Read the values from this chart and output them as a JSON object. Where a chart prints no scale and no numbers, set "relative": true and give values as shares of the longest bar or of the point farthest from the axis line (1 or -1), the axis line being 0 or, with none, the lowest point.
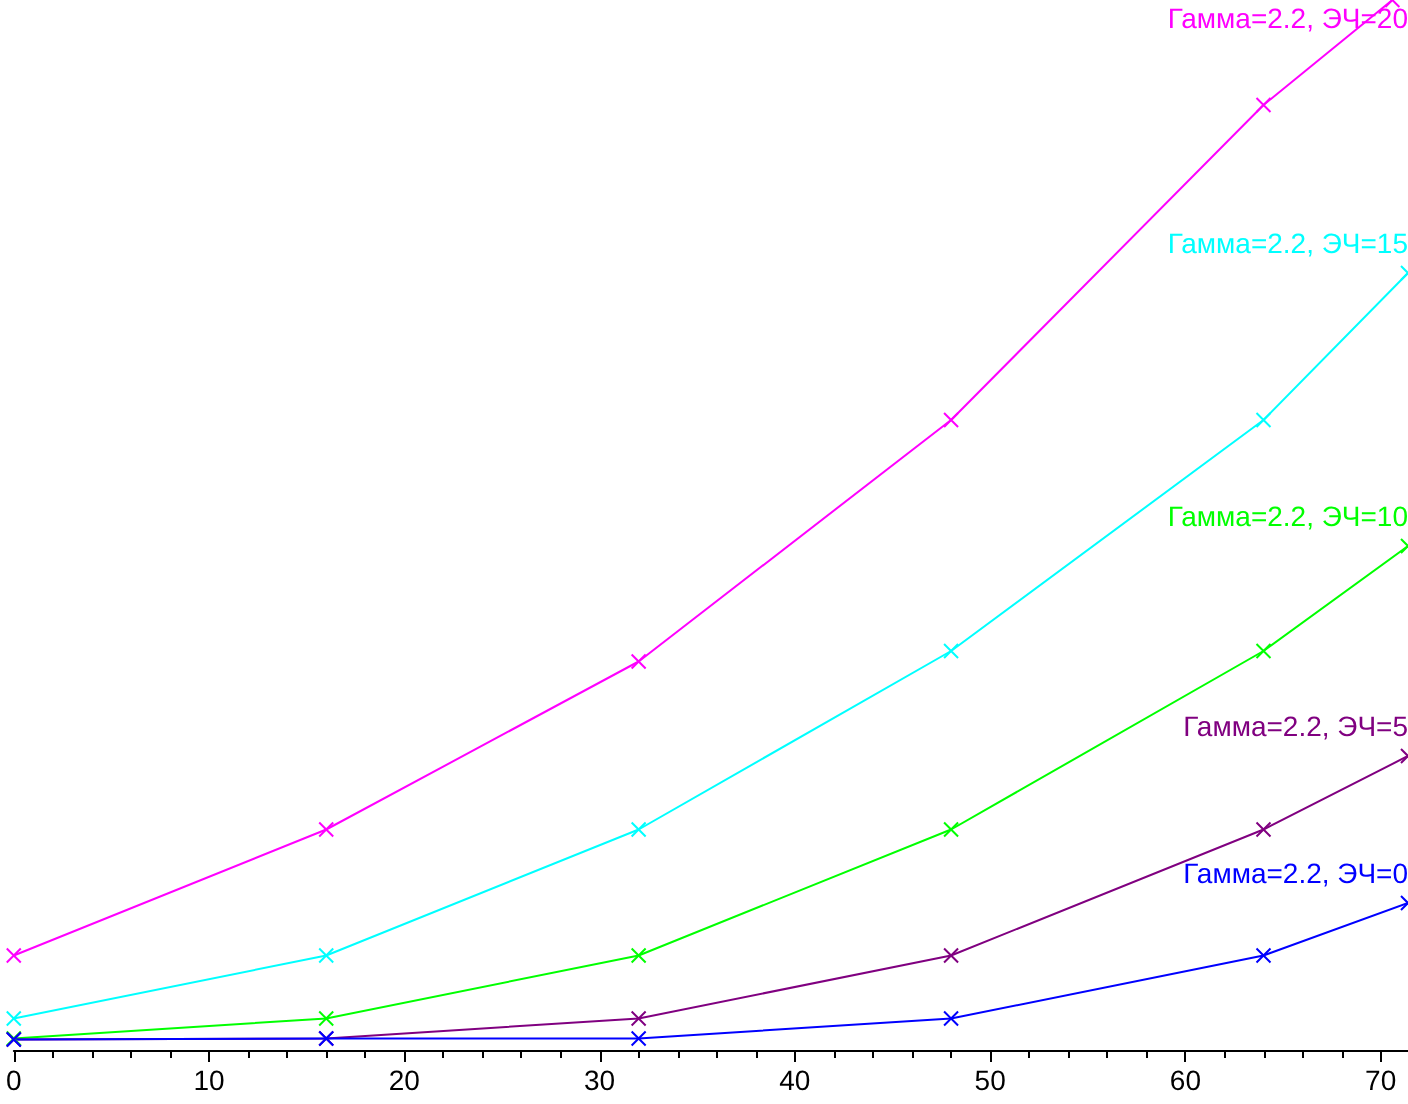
{
  "chart_data": {
    "type": "line",
    "relative": true,
    "x": [
      0,
      16,
      32,
      48,
      64,
      71.4
    ],
    "xlim": [
      0,
      71.4
    ],
    "xticks": [
      0,
      10,
      20,
      30,
      40,
      50,
      60,
      70
    ],
    "grid": false,
    "legend": false,
    "marker": "cross",
    "line_style": "solid",
    "tick_labels": "x",
    "series": [
      {
        "name": "Гамма=2.2, ЭЧ=20",
        "color": "#ff00ff",
        "x": [
          0,
          16,
          32,
          48,
          64,
          70.6
        ],
        "values": [
          0.09,
          0.21,
          0.37,
          0.6,
          0.9,
          1.0
        ]
      },
      {
        "name": "Гамма=2.2, ЭЧ=15",
        "color": "#00ffff",
        "values": [
          0.03,
          0.09,
          0.21,
          0.38,
          0.6,
          0.74
        ]
      },
      {
        "name": "Гамма=2.2, ЭЧ=10",
        "color": "#00ff00",
        "values": [
          0.011,
          0.03,
          0.09,
          0.21,
          0.38,
          0.48
        ]
      },
      {
        "name": "Гамма=2.2, ЭЧ=5",
        "color": "#800080",
        "values": [
          0.01,
          0.011,
          0.03,
          0.09,
          0.21,
          0.28
        ]
      },
      {
        "name": "Гамма=2.2, ЭЧ=0",
        "color": "#0000ff",
        "values": [
          0.01,
          0.011,
          0.011,
          0.03,
          0.09,
          0.14
        ]
      }
    ]
  }
}
